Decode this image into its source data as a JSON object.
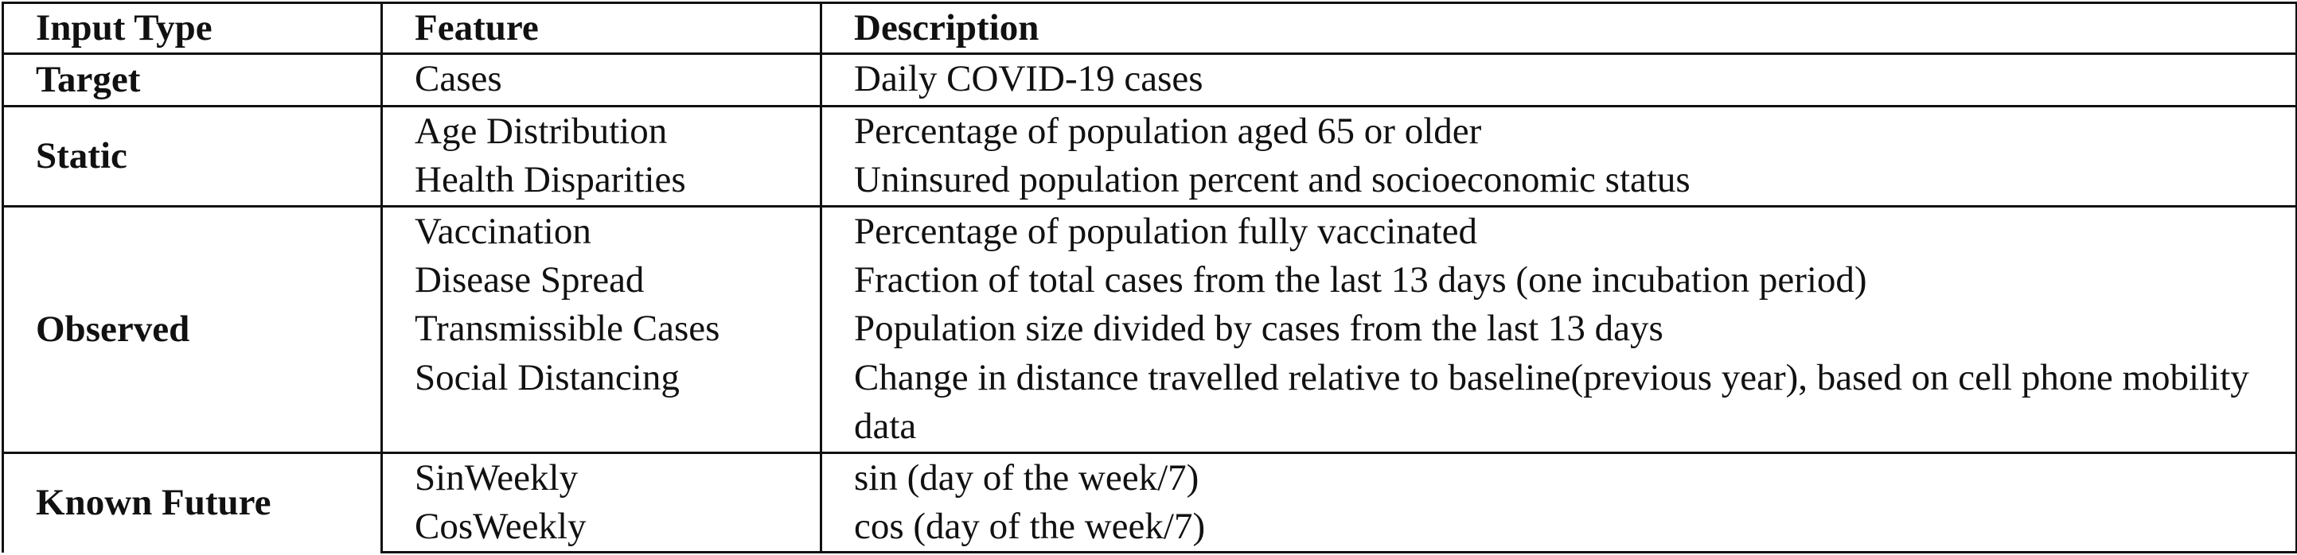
{
  "headers": {
    "input_type": "Input Type",
    "feature": "Feature",
    "description": "Description"
  },
  "groups": [
    {
      "type": "Target",
      "rows": [
        {
          "feature": "Cases",
          "description": "Daily COVID-19 cases"
        }
      ]
    },
    {
      "type": "Static",
      "rows": [
        {
          "feature": "Age Distribution",
          "description": "Percentage of population aged 65 or older"
        },
        {
          "feature": "Health Disparities",
          "description": "Uninsured population percent and socioeconomic status"
        }
      ]
    },
    {
      "type": "Observed",
      "rows": [
        {
          "feature": "Vaccination",
          "description": "Percentage of population fully vaccinated"
        },
        {
          "feature": "Disease Spread",
          "description": "Fraction of total cases from the last 13 days (one incubation period)"
        },
        {
          "feature": "Transmissible Cases",
          "description": "Population size divided by cases from the last 13 days"
        },
        {
          "feature": "Social Distancing",
          "description": "Change in distance travelled relative to baseline(previous year), based on cell phone mobility data"
        }
      ]
    },
    {
      "type": "Known Future",
      "rows": [
        {
          "feature": "SinWeekly",
          "description": "sin (day of the week/7)"
        },
        {
          "feature": "CosWeekly",
          "description": "cos (day of the week/7)"
        }
      ]
    }
  ]
}
